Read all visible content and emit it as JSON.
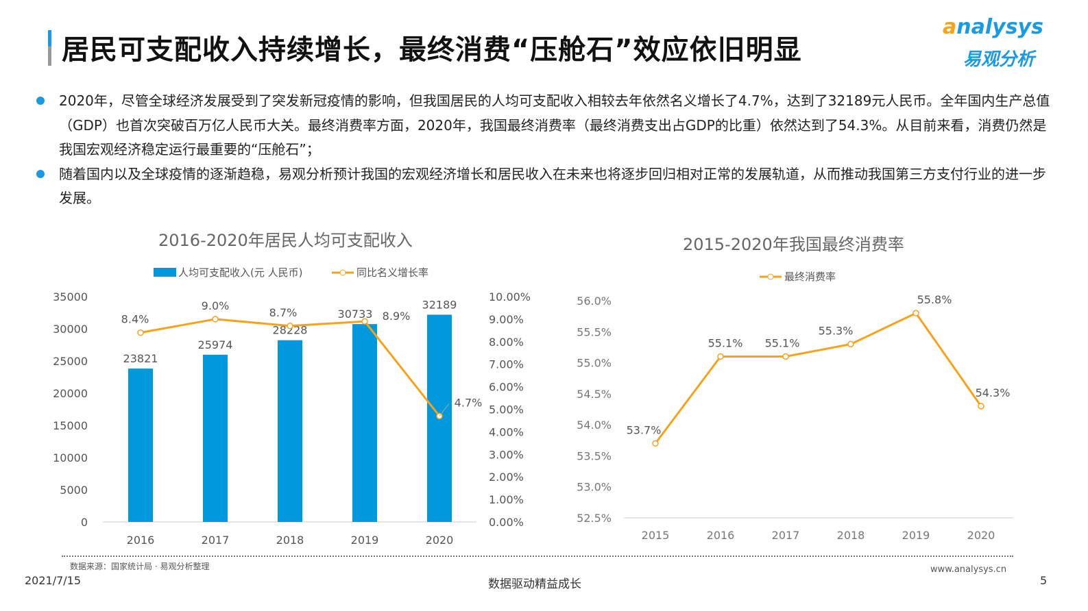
{
  "header": {
    "title": "居民可支配收入持续增长，最终消费“压舱石”效应依旧明显",
    "logo_en": "analysys",
    "logo_cn": "易观分析"
  },
  "bullets": [
    "2020年，尽管全球经济发展受到了突发新冠疫情的影响，但我国居民的人均可支配收入相较去年依然名义增长了4.7%，达到了32189元人民币。全年国内生产总值（GDP）也首次突破百万亿人民币大关。最终消费率方面，2020年，我国最终消费率（最终消费支出占GDP的比重）依然达到了54.3%。从目前来看，消费仍然是我国宏观经济稳定运行最重要的“压舱石”；",
    "随着国内以及全球疫情的逐渐趋稳，易观分析预计我国的宏观经济增长和居民收入在未来也将逐步回归相对正常的发展轨道，从而推动我国第三方支付行业的进一步发展。"
  ],
  "colors": {
    "accent": "#1a9ae0",
    "bar": "#0099dd",
    "line": "#f7a21b"
  },
  "chart_data": [
    {
      "type": "bar+line",
      "title": "2016-2020年居民人均可支配收入",
      "categories": [
        "2016",
        "2017",
        "2018",
        "2019",
        "2020"
      ],
      "series": [
        {
          "name": "人均可支配收入(元 人民币)",
          "type": "bar",
          "axis": "left",
          "values": [
            23821,
            25974,
            28228,
            30733,
            32189
          ],
          "labels": [
            "23821",
            "25974",
            "28228",
            "30733",
            "32189"
          ]
        },
        {
          "name": "同比名义增长率",
          "type": "line",
          "axis": "right",
          "values": [
            8.4,
            9.0,
            8.7,
            8.9,
            4.7
          ],
          "labels": [
            "8.4%",
            "9.0%",
            "8.7%",
            "8.9%",
            "4.7%"
          ]
        }
      ],
      "left_axis": {
        "range": [
          0,
          35000
        ],
        "ticks": [
          "0",
          "5000",
          "10000",
          "15000",
          "20000",
          "25000",
          "30000",
          "35000"
        ]
      },
      "right_axis": {
        "range": [
          0,
          10
        ],
        "ticks": [
          "0.00%",
          "1.00%",
          "2.00%",
          "3.00%",
          "4.00%",
          "5.00%",
          "6.00%",
          "7.00%",
          "8.00%",
          "9.00%",
          "10.00%"
        ]
      },
      "legend": "top",
      "grid": false
    },
    {
      "type": "line",
      "title": "2015-2020年我国最终消费率",
      "categories": [
        "2015",
        "2016",
        "2017",
        "2018",
        "2019",
        "2020"
      ],
      "series": [
        {
          "name": "最终消费率",
          "values": [
            53.7,
            55.1,
            55.1,
            55.3,
            55.8,
            54.3
          ],
          "labels": [
            "53.7%",
            "55.1%",
            "55.1%",
            "55.3%",
            "55.8%",
            "54.3%"
          ]
        }
      ],
      "y_axis": {
        "range": [
          52.5,
          56.0
        ],
        "ticks": [
          "52.5%",
          "53.0%",
          "53.5%",
          "54.0%",
          "54.5%",
          "55.0%",
          "55.5%",
          "56.0%"
        ]
      },
      "legend": "top",
      "grid": false
    }
  ],
  "footer": {
    "source": "数据来源：国家统计局 · 易观分析整理",
    "date": "2021/7/15",
    "slogan": "数据驱动精益成长",
    "url": "www.analysys.cn",
    "page": "5"
  }
}
